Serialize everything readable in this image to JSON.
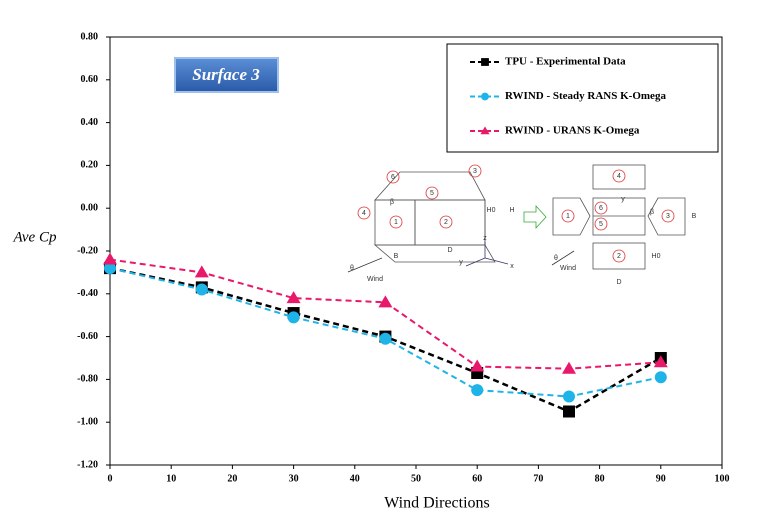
{
  "chart_data": {
    "type": "line",
    "annotation": "Surface 3",
    "x_label": "Wind Directions",
    "y_label": "Ave Cp",
    "x": [
      0,
      15,
      30,
      45,
      60,
      75,
      90
    ],
    "series": [
      {
        "name": "TPU - Experimental Data",
        "color": "#000000",
        "marker": "square",
        "values": [
          -0.28,
          -0.37,
          -0.49,
          -0.6,
          -0.77,
          -0.95,
          -0.7
        ]
      },
      {
        "name": "RWIND - Steady RANS K-Omega",
        "color": "#1fb4e8",
        "marker": "circle",
        "values": [
          -0.28,
          -0.38,
          -0.51,
          -0.61,
          -0.85,
          -0.88,
          -0.79
        ]
      },
      {
        "name": "RWIND - URANS K-Omega",
        "color": "#e8186a",
        "marker": "triangle",
        "values": [
          -0.24,
          -0.3,
          -0.42,
          -0.44,
          -0.74,
          -0.75,
          -0.72
        ]
      }
    ],
    "xlim": [
      0,
      100
    ],
    "xticks": [
      0,
      10,
      20,
      30,
      40,
      50,
      60,
      70,
      80,
      90,
      100
    ],
    "ylim": [
      -1.2,
      0.8
    ],
    "yticks": [
      {
        "value": -1.2,
        "label": "-1.20"
      },
      {
        "value": -1.0,
        "label": "-1.00"
      },
      {
        "value": -0.8,
        "label": "-0.80"
      },
      {
        "value": -0.6,
        "label": "-0.60"
      },
      {
        "value": -0.4,
        "label": "-0.40"
      },
      {
        "value": -0.2,
        "label": "-0.20"
      },
      {
        "value": 0,
        "label": "0.00"
      },
      {
        "value": 0.2,
        "label": "0.20"
      },
      {
        "value": 0.4,
        "label": "0.40"
      },
      {
        "value": 0.6,
        "label": "0.60"
      },
      {
        "value": 0.8,
        "label": "0.80"
      }
    ],
    "grid": false,
    "legend": "upper right"
  },
  "diagram_labels": [
    "6",
    "3",
    "5",
    "4",
    "1",
    "2",
    "β",
    "H0",
    "H",
    "B",
    "D",
    "Wind",
    "θ",
    "z",
    "y",
    "x",
    "4",
    "1",
    "6",
    "5",
    "3",
    "2",
    "B",
    "H0",
    "D",
    "Wind",
    "θ",
    "y",
    "β"
  ]
}
